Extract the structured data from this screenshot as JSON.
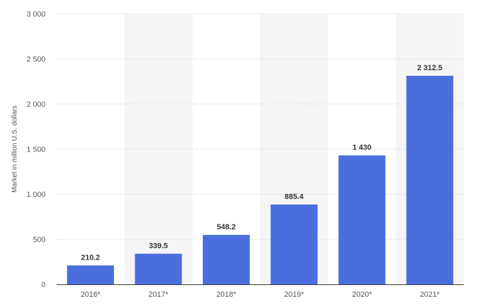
{
  "chart_data": {
    "type": "bar",
    "categories": [
      "2016*",
      "2017*",
      "2018*",
      "2019*",
      "2020*",
      "2021*"
    ],
    "values": [
      210.2,
      339.5,
      548.2,
      885.4,
      1430,
      2312.5
    ],
    "value_labels": [
      "210.2",
      "339.5",
      "548.2",
      "885.4",
      "1 430",
      "2 312.5"
    ],
    "ylabel": "Market in million U.S. dollars",
    "ylim": [
      0,
      3000
    ],
    "yticks": [
      0,
      500,
      1000,
      1500,
      2000,
      2500,
      3000
    ],
    "ytick_labels": [
      "0",
      "500",
      "1 000",
      "1 500",
      "2 000",
      "2 500",
      "3 000"
    ],
    "grid": true,
    "bar_color": "#4a6fdc",
    "band_color": "#f5f5f5"
  }
}
